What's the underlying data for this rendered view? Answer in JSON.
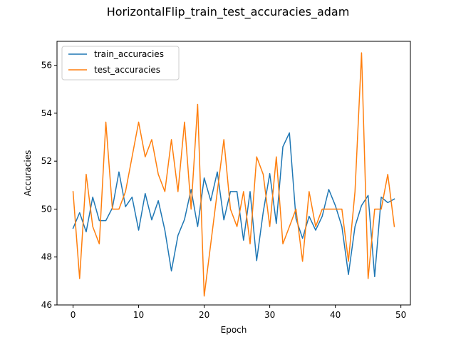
{
  "chart_data": {
    "type": "line",
    "title": "HorizontalFlip_train_test_accuracies_adam",
    "xlabel": "Epoch",
    "ylabel": "Accuracies",
    "xlim": [
      -2.45,
      51.45
    ],
    "ylim": [
      46.0,
      57.0
    ],
    "xticks": [
      0,
      10,
      20,
      30,
      40,
      50
    ],
    "yticks": [
      46,
      48,
      50,
      52,
      54,
      56
    ],
    "grid": false,
    "legend_position": "upper-left",
    "x": [
      0,
      1,
      2,
      3,
      4,
      5,
      6,
      7,
      8,
      9,
      10,
      11,
      12,
      13,
      14,
      15,
      16,
      17,
      18,
      19,
      20,
      21,
      22,
      23,
      24,
      25,
      26,
      27,
      28,
      29,
      30,
      31,
      32,
      33,
      34,
      35,
      36,
      37,
      38,
      39,
      40,
      41,
      42,
      43,
      44,
      45,
      46,
      47,
      48,
      49
    ],
    "series": [
      {
        "name": "train_accuracies",
        "color": "#1f77b4",
        "values": [
          49.2,
          49.85,
          49.05,
          50.5,
          49.52,
          49.52,
          50.05,
          51.55,
          50.1,
          50.5,
          49.12,
          50.65,
          49.55,
          50.35,
          49.12,
          47.42,
          48.9,
          49.57,
          50.82,
          49.27,
          51.3,
          50.35,
          51.55,
          49.55,
          50.73,
          50.73,
          48.7,
          50.73,
          47.85,
          49.87,
          51.48,
          49.4,
          52.6,
          53.18,
          49.6,
          48.78,
          49.7,
          49.12,
          49.7,
          50.82,
          50.15,
          49.27,
          47.27,
          49.27,
          50.15,
          50.57,
          47.18,
          50.5,
          50.27,
          50.42
        ]
      },
      {
        "name": "test_accuracies",
        "color": "#ff7f0e",
        "values": [
          50.73,
          47.1,
          51.45,
          49.27,
          48.55,
          53.63,
          50.0,
          50.0,
          50.73,
          52.18,
          53.63,
          52.18,
          52.9,
          51.45,
          50.73,
          52.9,
          50.73,
          53.63,
          50.0,
          54.37,
          46.37,
          48.55,
          50.73,
          52.9,
          50.0,
          49.27,
          50.73,
          48.55,
          52.18,
          51.45,
          49.27,
          52.18,
          48.55,
          49.27,
          50.0,
          47.82,
          50.73,
          49.27,
          50.0,
          50.0,
          50.0,
          50.0,
          47.82,
          50.73,
          56.52,
          47.1,
          50.0,
          50.0,
          51.45,
          49.27
        ]
      }
    ]
  }
}
